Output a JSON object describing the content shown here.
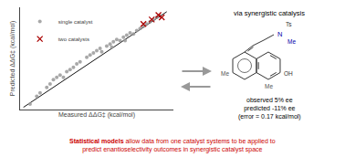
{
  "chart_data": {
    "type": "scatter",
    "xlabel": "Measured ΔΔG‡ (kcal/mol)",
    "ylabel": "Predicted ΔΔG‡ (kcal/mol)",
    "xlim": [
      -2.1,
      2.5
    ],
    "ylim": [
      -2.1,
      2.5
    ],
    "tick_labels": false,
    "grid": false,
    "legend": "upper left",
    "series": [
      {
        "type": "line",
        "color": "#111111",
        "x": [
          -2.0,
          2.3
        ],
        "values": [
          -2.0,
          2.3
        ]
      },
      {
        "name": "single catalyst",
        "type": "scatter",
        "marker": "circle",
        "color": "#999999",
        "x": [
          -1.8,
          -1.6,
          -1.5,
          -1.3,
          -1.2,
          -1.1,
          -1.0,
          -0.9,
          -0.8,
          -0.7,
          -0.6,
          -0.5,
          -0.4,
          -0.3,
          -0.1,
          0.0,
          0.1,
          0.2,
          0.3,
          0.35,
          0.5,
          0.6,
          0.65,
          0.7,
          0.8,
          0.9,
          1.0,
          1.05,
          1.1,
          1.2,
          1.3,
          1.4,
          1.5,
          1.6,
          1.7,
          1.8,
          1.9,
          2.0
        ],
        "values": [
          -1.85,
          -1.5,
          -1.35,
          -1.1,
          -0.95,
          -0.75,
          -0.65,
          -0.55,
          -0.65,
          -0.4,
          -0.3,
          -0.2,
          -0.05,
          0.05,
          0.25,
          0.35,
          0.45,
          0.55,
          0.65,
          0.5,
          0.75,
          0.85,
          0.7,
          0.95,
          1.05,
          1.0,
          1.15,
          1.0,
          1.25,
          1.35,
          1.3,
          1.45,
          1.55,
          1.65,
          1.75,
          1.85,
          1.95,
          2.05
        ]
      },
      {
        "name": "two catalysts",
        "type": "scatter",
        "marker": "x",
        "color": "#aa0000",
        "x": [
          1.6,
          1.85,
          2.05,
          2.15
        ],
        "values": [
          1.75,
          1.95,
          2.15,
          2.05
        ]
      }
    ],
    "annotations": [
      {
        "parts": [
          {
            "text": "Statistical models",
            "bold": true
          },
          {
            "text": " allow data from one catalyst systems to be applied to\npredict enantioselectivity outcomes in synergistic catalyst space"
          }
        ],
        "color": "#cc0000"
      },
      {
        "text": "via synergistic catalysis",
        "color": "#000000"
      },
      {
        "text": "observed 5% ee\npredicted -11% ee\n(error = 0.17 kcal/mol)",
        "color": "#000000"
      },
      {
        "text": "Me",
        "color": "#555555"
      },
      {
        "text": "OH",
        "color": "#333333"
      },
      {
        "text": "Me",
        "color": "#555555"
      },
      {
        "text": "N",
        "color": "#0000aa"
      },
      {
        "text": "Ts",
        "color": "#333333"
      },
      {
        "text": "Me",
        "color": "#0000aa"
      }
    ]
  }
}
